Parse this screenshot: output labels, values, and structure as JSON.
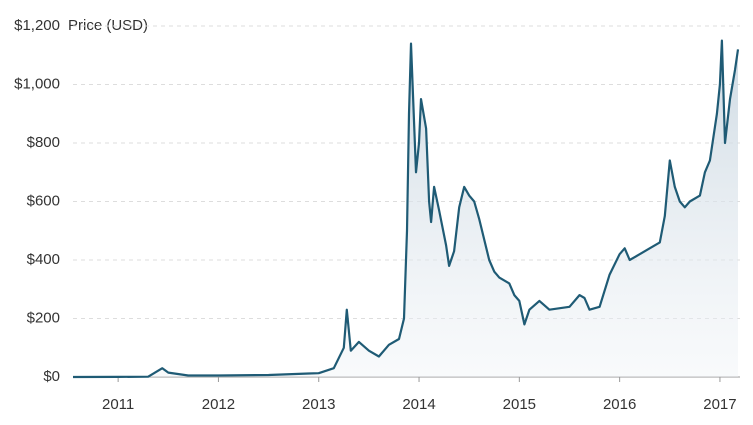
{
  "chart_data": {
    "type": "line",
    "y_label": "Price (USD)",
    "x": [
      2010.55,
      2011.0,
      2011.3,
      2011.44,
      2011.5,
      2011.7,
      2012.0,
      2012.5,
      2012.9,
      2013.0,
      2013.15,
      2013.25,
      2013.28,
      2013.32,
      2013.4,
      2013.5,
      2013.6,
      2013.7,
      2013.8,
      2013.85,
      2013.88,
      2013.9,
      2013.92,
      2013.97,
      2014.0,
      2014.02,
      2014.07,
      2014.1,
      2014.12,
      2014.15,
      2014.2,
      2014.27,
      2014.3,
      2014.35,
      2014.4,
      2014.45,
      2014.5,
      2014.55,
      2014.6,
      2014.7,
      2014.75,
      2014.8,
      2014.9,
      2014.95,
      2015.0,
      2015.05,
      2015.1,
      2015.2,
      2015.3,
      2015.5,
      2015.6,
      2015.65,
      2015.7,
      2015.8,
      2015.9,
      2016.0,
      2016.05,
      2016.1,
      2016.2,
      2016.3,
      2016.4,
      2016.45,
      2016.5,
      2016.55,
      2016.6,
      2016.65,
      2016.7,
      2016.8,
      2016.85,
      2016.9,
      2016.97,
      2017.0,
      2017.02,
      2017.05,
      2017.1,
      2017.15,
      2017.18
    ],
    "values": [
      0,
      0.3,
      1,
      30,
      15,
      5,
      5,
      7,
      12,
      13,
      30,
      100,
      230,
      90,
      120,
      90,
      70,
      110,
      130,
      200,
      500,
      900,
      1140,
      700,
      800,
      950,
      850,
      600,
      530,
      650,
      570,
      450,
      380,
      430,
      580,
      650,
      620,
      600,
      540,
      400,
      360,
      340,
      320,
      280,
      260,
      180,
      230,
      260,
      230,
      240,
      280,
      270,
      230,
      240,
      350,
      420,
      440,
      400,
      420,
      440,
      460,
      550,
      740,
      650,
      600,
      580,
      600,
      620,
      700,
      740,
      900,
      1000,
      1150,
      800,
      950,
      1050,
      1120
    ],
    "color": "#1f5b75",
    "xlim": [
      2010.55,
      2017.2
    ],
    "xticks": [
      2011,
      2012,
      2013,
      2014,
      2015,
      2016,
      2017
    ],
    "ylim": [
      0,
      1200
    ],
    "yticks": [
      {
        "value": 0,
        "label": "$0"
      },
      {
        "value": 200,
        "label": "$200"
      },
      {
        "value": 400,
        "label": "$400"
      },
      {
        "value": 600,
        "label": "$600"
      },
      {
        "value": 800,
        "label": "$800"
      },
      {
        "value": 1000,
        "label": "$1,000"
      },
      {
        "value": 1200,
        "label": "$1,200"
      }
    ],
    "grid": true
  }
}
